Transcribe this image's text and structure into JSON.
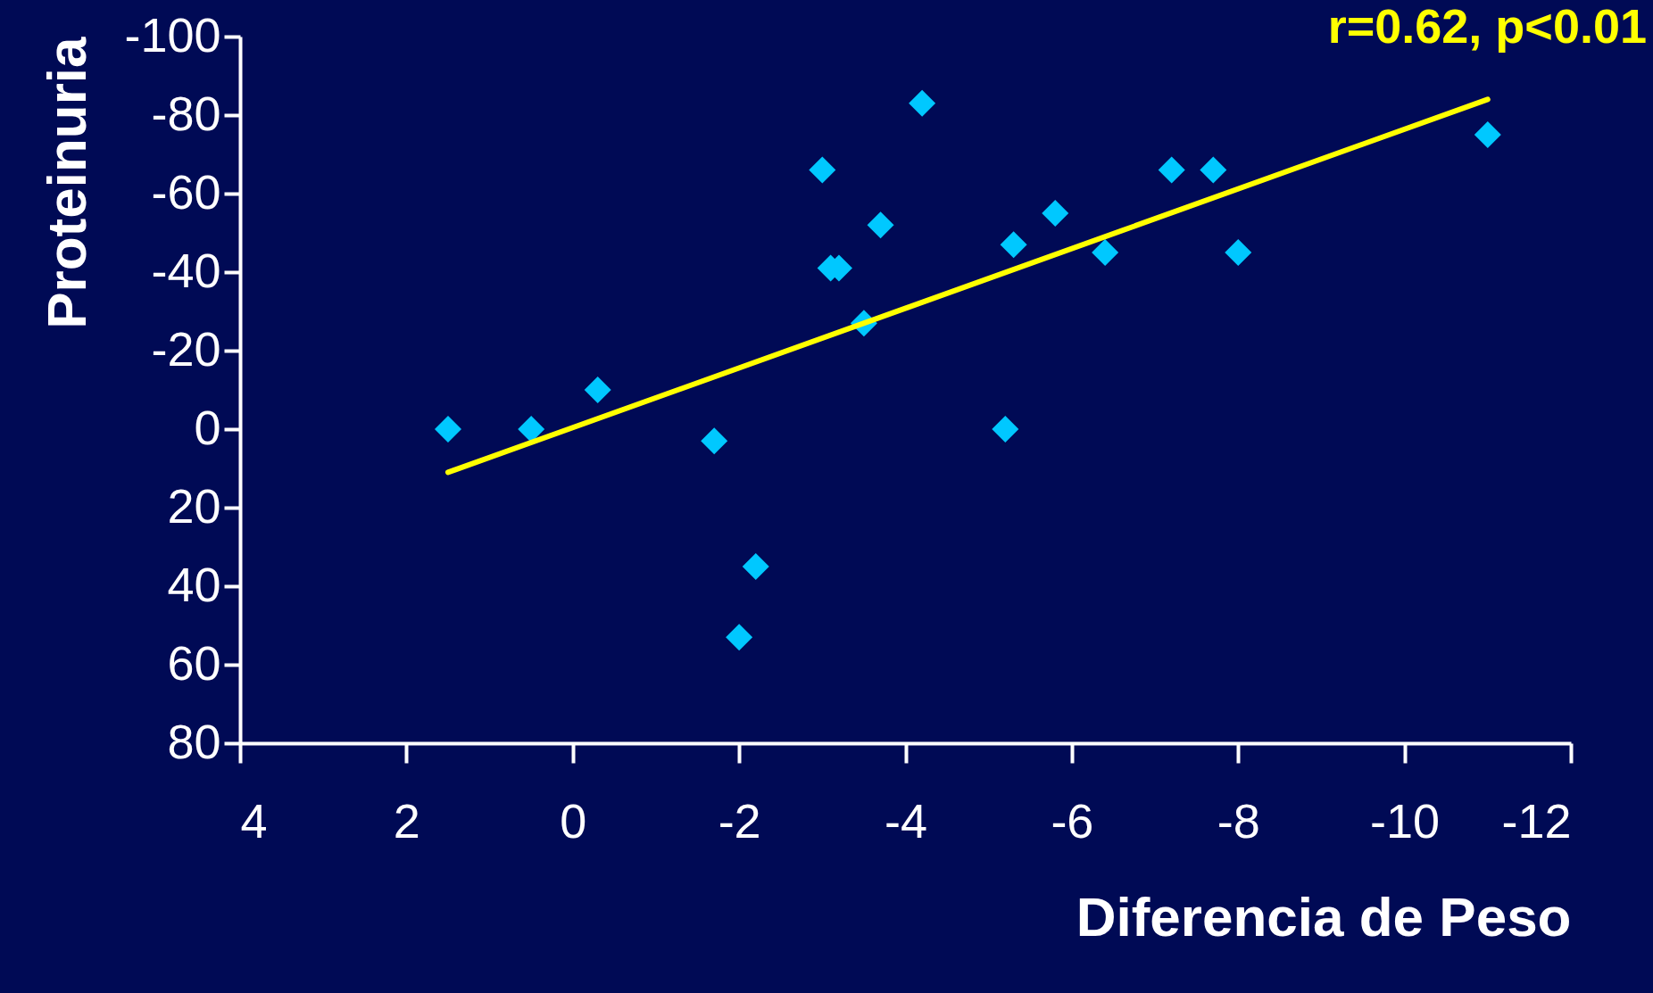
{
  "chart_data": {
    "type": "scatter",
    "xlabel": "Diferencia de Peso",
    "ylabel": "Proteinuria",
    "annotations": [
      "r=0.62, p<0.01"
    ],
    "xlim": [
      4,
      -12
    ],
    "xticks": [
      4,
      2,
      0,
      -2,
      -4,
      -6,
      -8,
      -10,
      -12
    ],
    "ylim": [
      80,
      -100
    ],
    "yticks": [
      -100,
      -80,
      -60,
      -40,
      -20,
      0,
      20,
      40,
      60,
      80
    ],
    "grid": false,
    "series": [
      {
        "marker": "diamond",
        "color": "#00c8ff",
        "x": [
          1.5,
          0.5,
          -0.3,
          -1.7,
          -2.2,
          -2.0,
          -3.0,
          -3.1,
          -3.2,
          -3.5,
          -3.7,
          -4.2,
          -5.2,
          -5.3,
          -5.8,
          -6.4,
          -7.2,
          -7.7,
          -8.0,
          -11.0
        ],
        "values": [
          0,
          0,
          -10,
          3,
          35,
          53,
          -66,
          -41,
          -41,
          -27,
          -52,
          -83,
          0,
          -47,
          -55,
          -45,
          -66,
          -66,
          -45,
          -75
        ]
      },
      {
        "type": "line",
        "color": "#ffff00",
        "x": [
          1.5,
          -11.0
        ],
        "values": [
          11,
          -84
        ]
      }
    ]
  }
}
